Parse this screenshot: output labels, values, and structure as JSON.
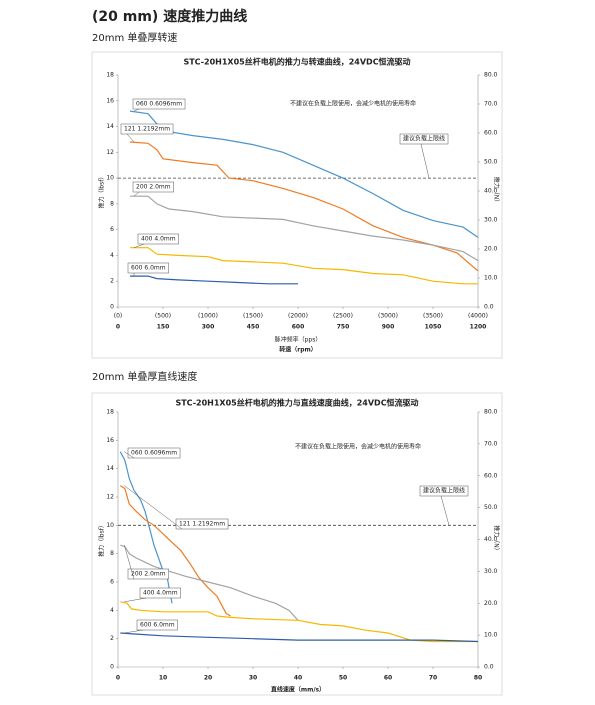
{
  "header": {
    "title": "(20 mm) 速度推力曲线"
  },
  "chart_data": [
    {
      "type": "line",
      "heading": "20mm 单叠厚转速",
      "title": "STC-20H1X05丝杆电机的推力与转速曲线，24VDC恒流驱动",
      "note": "不建议在负载上限使用，会减少电机的使用寿命",
      "limit_label": "建议负载上限线",
      "limit_line": 10,
      "ylabel": "推力（lbsf）",
      "y2label": "推力（N）",
      "xlabel": "转速（rpm）",
      "x2label": "脉冲频率（pps）",
      "xlim": [
        0,
        1200
      ],
      "xticks": [
        0,
        150,
        300,
        450,
        600,
        750,
        900,
        1050,
        1200
      ],
      "x2lim": [
        0,
        4000
      ],
      "x2ticks": [
        {
          "value": 0,
          "label": "(0)"
        },
        {
          "value": 500,
          "label": "(500)"
        },
        {
          "value": 1000,
          "label": "(1000)"
        },
        {
          "value": 1500,
          "label": "(1500)"
        },
        {
          "value": 2000,
          "label": "(2000)"
        },
        {
          "value": 2500,
          "label": "(2500)"
        },
        {
          "value": 3000,
          "label": "(3000)"
        },
        {
          "value": 3500,
          "label": "(3500)"
        },
        {
          "value": 4000,
          "label": "(4000)"
        }
      ],
      "ylim": [
        0,
        18
      ],
      "yticks": [
        0,
        2,
        4,
        6,
        8,
        10,
        12,
        14,
        16,
        18
      ],
      "y2lim": [
        0,
        80
      ],
      "y2ticks": [
        {
          "value": 0,
          "label": "0.0"
        },
        {
          "value": 10,
          "label": "10.0"
        },
        {
          "value": 20,
          "label": "20.0"
        },
        {
          "value": 30,
          "label": "30.0"
        },
        {
          "value": 40,
          "label": "40.0"
        },
        {
          "value": 50,
          "label": "50.0"
        },
        {
          "value": 60,
          "label": "60.0"
        },
        {
          "value": 70,
          "label": "70.0"
        },
        {
          "value": 80,
          "label": "80.0"
        }
      ],
      "series": [
        {
          "name": "060 0.6096mm",
          "color": "#4a94cc",
          "x": [
            40,
            100,
            130,
            170,
            250,
            350,
            450,
            550,
            650,
            750,
            850,
            950,
            1050,
            1150,
            1200
          ],
          "values": [
            15.2,
            15.0,
            14.2,
            13.6,
            13.3,
            13.0,
            12.6,
            12.0,
            11.0,
            10.0,
            8.8,
            7.5,
            6.7,
            6.2,
            5.4
          ]
        },
        {
          "name": "121 1.2192mm",
          "color": "#f07a22",
          "x": [
            40,
            100,
            130,
            150,
            250,
            330,
            370,
            450,
            550,
            650,
            750,
            850,
            950,
            1050,
            1130,
            1200
          ],
          "values": [
            12.8,
            12.7,
            12.2,
            11.5,
            11.2,
            11.0,
            10.0,
            9.8,
            9.2,
            8.5,
            7.6,
            6.3,
            5.4,
            4.8,
            4.2,
            2.8
          ]
        },
        {
          "name": "200 2.0mm",
          "color": "#a3a3a3",
          "x": [
            40,
            100,
            130,
            170,
            250,
            350,
            450,
            550,
            650,
            750,
            850,
            950,
            1050,
            1150,
            1200
          ],
          "values": [
            8.6,
            8.6,
            8.0,
            7.6,
            7.4,
            7.0,
            6.9,
            6.8,
            6.3,
            5.9,
            5.5,
            5.2,
            4.8,
            4.3,
            3.6
          ]
        },
        {
          "name": "400 4.0mm",
          "color": "#f5b800",
          "x": [
            40,
            100,
            130,
            200,
            300,
            350,
            450,
            550,
            650,
            750,
            850,
            950,
            1050,
            1150,
            1200
          ],
          "values": [
            4.6,
            4.6,
            4.1,
            4.0,
            3.9,
            3.6,
            3.5,
            3.4,
            3.0,
            2.9,
            2.6,
            2.5,
            2.0,
            1.8,
            1.8
          ]
        },
        {
          "name": "600 6.0mm",
          "color": "#2e5ea8",
          "x": [
            40,
            100,
            130,
            200,
            300,
            400,
            500,
            600
          ],
          "values": [
            2.4,
            2.4,
            2.2,
            2.1,
            2.0,
            1.9,
            1.8,
            1.8
          ]
        }
      ]
    },
    {
      "type": "line",
      "heading": "20mm 单叠厚直线速度",
      "title": "STC-20H1X05丝杆电机的推力与直线速度曲线，24VDC恒流驱动",
      "note": "不建议在负载上限使用，会减少电机的使用寿命",
      "limit_label": "建议负载上限线",
      "limit_line": 10,
      "ylabel": "推力（lbsf）",
      "y2label": "推力（N）",
      "xlabel": "直线速度（mm/s）",
      "xlim": [
        0,
        80
      ],
      "xticks": [
        0,
        10,
        20,
        30,
        40,
        50,
        60,
        70,
        80
      ],
      "ylim": [
        0,
        18
      ],
      "yticks": [
        0,
        2,
        4,
        6,
        8,
        10,
        12,
        14,
        16,
        18
      ],
      "y2lim": [
        0,
        80
      ],
      "y2ticks": [
        {
          "value": 0,
          "label": "0.0"
        },
        {
          "value": 10,
          "label": "10.0"
        },
        {
          "value": 20,
          "label": "20.0"
        },
        {
          "value": 30,
          "label": "30.0"
        },
        {
          "value": 40,
          "label": "40.0"
        },
        {
          "value": 50,
          "label": "50.0"
        },
        {
          "value": 60,
          "label": "60.0"
        },
        {
          "value": 70,
          "label": "70.0"
        },
        {
          "value": 80,
          "label": "80.0"
        }
      ],
      "series": [
        {
          "name": "060 0.6096mm",
          "color": "#4a94cc",
          "x": [
            0.5,
            1.5,
            2.5,
            3.5,
            5,
            6,
            7,
            8,
            9,
            10,
            11,
            12
          ],
          "values": [
            15.2,
            14.6,
            13.3,
            12.5,
            11.8,
            11.0,
            9.8,
            8.6,
            7.7,
            6.8,
            6.2,
            4.5
          ]
        },
        {
          "name": "121 1.2192mm",
          "color": "#f07a22",
          "x": [
            0.5,
            1.5,
            2.5,
            4,
            6,
            8,
            10,
            12,
            14,
            16,
            18,
            20,
            22,
            24,
            25
          ],
          "values": [
            12.8,
            12.6,
            11.5,
            11.0,
            10.4,
            10.0,
            9.4,
            8.8,
            8.2,
            7.3,
            6.3,
            5.6,
            5.0,
            3.8,
            3.6
          ]
        },
        {
          "name": "200 2.0mm",
          "color": "#a3a3a3",
          "x": [
            0.5,
            1.5,
            2.5,
            4,
            6,
            8,
            10,
            15,
            20,
            25,
            30,
            35,
            38,
            40
          ],
          "values": [
            8.6,
            8.5,
            8.0,
            7.7,
            7.4,
            7.1,
            6.9,
            6.4,
            6.0,
            5.6,
            5.0,
            4.5,
            4.0,
            3.3
          ]
        },
        {
          "name": "400 4.0mm",
          "color": "#f5b800",
          "x": [
            0.5,
            2,
            3,
            5,
            10,
            15,
            20,
            22,
            25,
            30,
            40,
            45,
            50,
            55,
            60,
            65,
            70,
            80
          ],
          "values": [
            4.6,
            4.5,
            4.1,
            4.0,
            3.9,
            3.9,
            3.9,
            3.6,
            3.5,
            3.4,
            3.3,
            3.0,
            2.9,
            2.6,
            2.4,
            1.9,
            1.8,
            1.8
          ]
        },
        {
          "name": "600 6.0mm",
          "color": "#2e5ea8",
          "x": [
            0.5,
            5,
            10,
            20,
            30,
            40,
            50,
            60,
            70,
            80
          ],
          "values": [
            2.4,
            2.3,
            2.2,
            2.1,
            2.0,
            1.9,
            1.9,
            1.9,
            1.9,
            1.8
          ]
        }
      ]
    }
  ]
}
